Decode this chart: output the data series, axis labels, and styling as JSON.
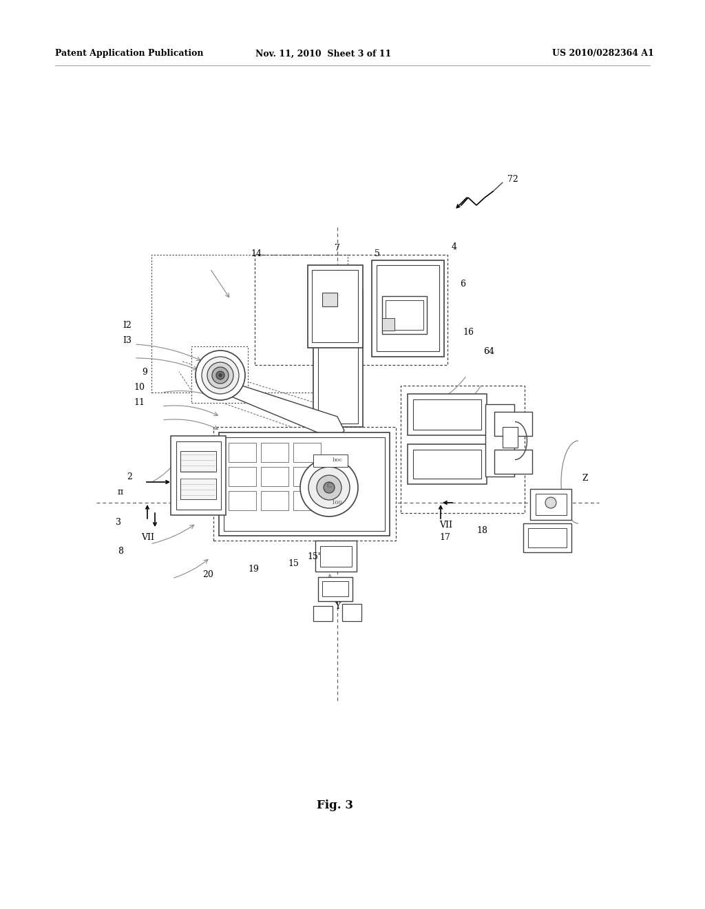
{
  "bg_color": "#ffffff",
  "header_left": "Patent Application Publication",
  "header_mid": "Nov. 11, 2010  Sheet 3 of 11",
  "header_right": "US 2010/0282364 A1",
  "fig_label": "Fig. 3",
  "line_color": "#404040",
  "dashed_color": "#606060",
  "text_color": "#000000",
  "gray_line": "#888888",
  "light_gray": "#bbbbbb"
}
